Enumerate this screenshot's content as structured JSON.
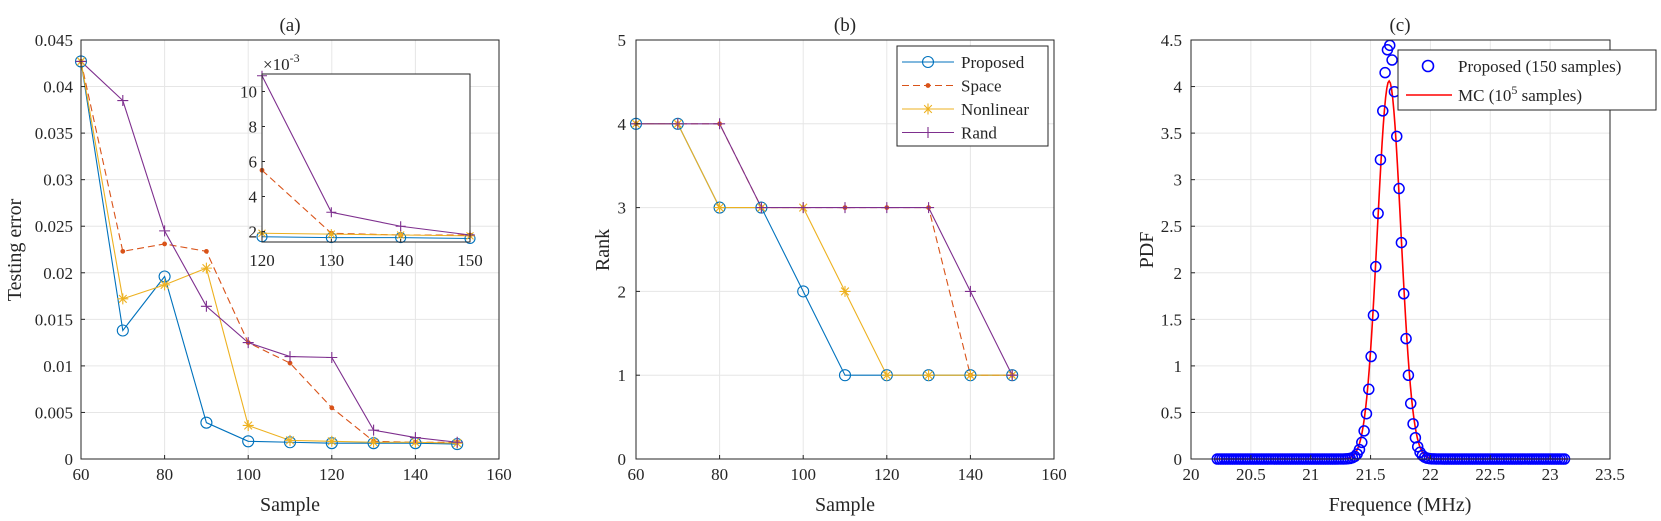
{
  "chart_data": [
    {
      "id": "a",
      "type": "line",
      "title": "(a)",
      "xlabel": "Sample",
      "ylabel": "Testing error",
      "xlim": [
        60,
        160
      ],
      "ylim": [
        0,
        0.045
      ],
      "xticks": [
        "60",
        "80",
        "100",
        "120",
        "140",
        "160"
      ],
      "yticks": [
        "0",
        "0.005",
        "0.01",
        "0.015",
        "0.02",
        "0.025",
        "0.03",
        "0.035",
        "0.04",
        "0.045"
      ],
      "grid": true,
      "x": [
        60,
        70,
        80,
        90,
        100,
        110,
        120,
        130,
        140,
        150
      ],
      "series": [
        {
          "name": "Proposed",
          "color": "#0072BD",
          "marker": "circle",
          "dash": "solid",
          "values": [
            0.0427,
            0.0138,
            0.0196,
            0.0039,
            0.0019,
            0.0018,
            0.0017,
            0.0017,
            0.0017,
            0.0016
          ]
        },
        {
          "name": "Space",
          "color": "#D95319",
          "marker": "dot",
          "dash": "dashed",
          "values": [
            0.0427,
            0.0223,
            0.0231,
            0.0223,
            0.0125,
            0.0103,
            0.0055,
            0.0019,
            0.0018,
            0.0018
          ]
        },
        {
          "name": "Nonlinear",
          "color": "#EDB120",
          "marker": "asterisk",
          "dash": "solid",
          "values": [
            0.0427,
            0.0172,
            0.0187,
            0.0205,
            0.0036,
            0.002,
            0.0019,
            0.0018,
            0.0018,
            0.0017
          ]
        },
        {
          "name": "Rand",
          "color": "#7E2F8E",
          "marker": "plus",
          "dash": "solid",
          "values": [
            0.0427,
            0.0385,
            0.0245,
            0.0164,
            0.0125,
            0.011,
            0.0109,
            0.0031,
            0.0023,
            0.0018
          ]
        }
      ],
      "inset": {
        "exponent_label": "×10",
        "exponent": "-3",
        "xlim": [
          120,
          150
        ],
        "ylim": [
          1.4,
          11
        ],
        "xticks": [
          "120",
          "130",
          "140",
          "150"
        ],
        "yticks": [
          "2",
          "4",
          "6",
          "8",
          "10"
        ],
        "x": [
          120,
          130,
          140,
          150
        ],
        "series": [
          {
            "name": "Proposed",
            "values": [
              1.7,
              1.65,
              1.65,
              1.6
            ]
          },
          {
            "name": "Space",
            "values": [
              5.5,
              1.9,
              1.8,
              1.8
            ]
          },
          {
            "name": "Nonlinear",
            "values": [
              1.9,
              1.85,
              1.8,
              1.75
            ]
          },
          {
            "name": "Rand",
            "values": [
              10.9,
              3.1,
              2.3,
              1.8
            ]
          }
        ]
      }
    },
    {
      "id": "b",
      "type": "line",
      "title": "(b)",
      "xlabel": "Sample",
      "ylabel": "Rank",
      "xlim": [
        60,
        160
      ],
      "ylim": [
        0,
        5
      ],
      "xticks": [
        "60",
        "80",
        "100",
        "120",
        "140",
        "160"
      ],
      "yticks": [
        "0",
        "1",
        "2",
        "3",
        "4",
        "5"
      ],
      "grid": true,
      "legend_position": "top-right",
      "x": [
        60,
        70,
        80,
        90,
        100,
        110,
        120,
        130,
        140,
        150
      ],
      "series": [
        {
          "name": "Proposed",
          "color": "#0072BD",
          "marker": "circle",
          "dash": "solid",
          "values": [
            4,
            4,
            3,
            3,
            2,
            1,
            1,
            1,
            1,
            1
          ]
        },
        {
          "name": "Space",
          "color": "#D95319",
          "marker": "dot",
          "dash": "dashed",
          "values": [
            4,
            4,
            4,
            3,
            3,
            3,
            3,
            3,
            1,
            1
          ]
        },
        {
          "name": "Nonlinear",
          "color": "#EDB120",
          "marker": "asterisk",
          "dash": "solid",
          "values": [
            4,
            4,
            3,
            3,
            3,
            2,
            1,
            1,
            1,
            1
          ]
        },
        {
          "name": "Rand",
          "color": "#7E2F8E",
          "marker": "plus",
          "dash": "solid",
          "values": [
            4,
            4,
            4,
            3,
            3,
            3,
            3,
            3,
            2,
            1
          ]
        }
      ]
    },
    {
      "id": "c",
      "type": "scatter",
      "title": "(c)",
      "xlabel": "Frequence (MHz)",
      "ylabel": "PDF",
      "xlim": [
        20,
        23.5
      ],
      "ylim": [
        0,
        4.5
      ],
      "xticks": [
        "20",
        "20.5",
        "21",
        "21.5",
        "22",
        "22.5",
        "23",
        "23.5"
      ],
      "yticks": [
        "0",
        "0.5",
        "1",
        "1.5",
        "2",
        "2.5",
        "3",
        "3.5",
        "4",
        "4.5"
      ],
      "grid": true,
      "legend_position": "top-right",
      "series": [
        {
          "name": "Proposed (150 samples)",
          "color": "#0000FF",
          "marker": "circle",
          "x_range": [
            20.22,
            23.12
          ],
          "n_points": 150,
          "peak_x": 21.655,
          "peak_y": 4.45,
          "sigma": 0.09
        },
        {
          "name_prefix": "MC (10",
          "name_sup": "5",
          "name_suffix": " samples)",
          "color": "#FF0000",
          "marker": "none",
          "x_range": [
            20.2,
            23.15
          ],
          "peak_x": 21.655,
          "peak_y": 4.06,
          "sigma": 0.098
        }
      ]
    }
  ]
}
